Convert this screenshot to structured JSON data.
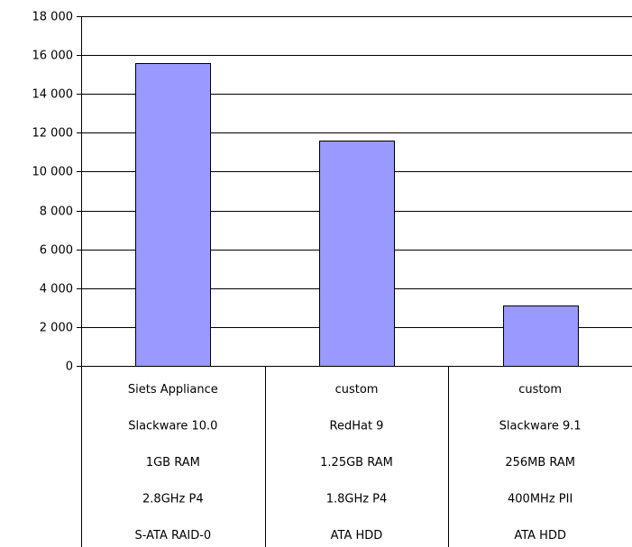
{
  "chart_data": {
    "type": "bar",
    "title": "",
    "xlabel": "",
    "ylabel": "",
    "ylim": [
      0,
      18000
    ],
    "yticks": [
      0,
      2000,
      4000,
      6000,
      8000,
      10000,
      12000,
      14000,
      16000,
      18000
    ],
    "ytick_labels": [
      "0",
      "2 000",
      "4 000",
      "6 000",
      "8 000",
      "10 000",
      "12 000",
      "14 000",
      "16 000",
      "18 000"
    ],
    "grid": "horizontal",
    "bar_color": "#9999ff",
    "categories": [
      [
        "Siets Appliance",
        "Slackware 10.0",
        "1GB RAM",
        "2.8GHz P4",
        "S-ATA RAID-0"
      ],
      [
        "custom",
        "RedHat 9",
        "1.25GB RAM",
        "1.8GHz P4",
        "ATA HDD"
      ],
      [
        "custom",
        "Slackware 9.1",
        "256MB RAM",
        "400MHz PII",
        "ATA HDD"
      ]
    ],
    "values": [
      15600,
      11600,
      3100
    ]
  }
}
